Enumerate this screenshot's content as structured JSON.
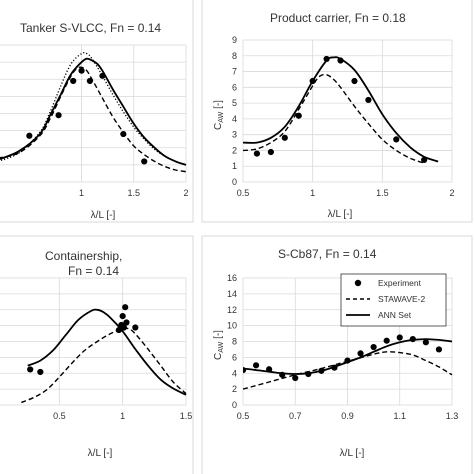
{
  "chart_data": [
    {
      "type": "line",
      "title": "Tanker S-VLCC, Fn = 0.14",
      "xlabel": "λ/L [-]",
      "ylabel": "",
      "xlim": [
        0.2,
        2
      ],
      "ylim": [
        0,
        8
      ],
      "xticks": [
        1,
        1.5,
        2
      ],
      "yticks": [],
      "grid": true,
      "series": [
        {
          "name": "Experiment",
          "style": "points",
          "x": [
            0.5,
            0.78,
            0.92,
            1.0,
            1.08,
            1.2,
            1.4,
            1.6
          ],
          "y": [
            2.7,
            3.9,
            5.9,
            6.5,
            5.9,
            6.2,
            2.8,
            1.2
          ]
        },
        {
          "name": "STAWAVE-2",
          "style": "dashed",
          "x": [
            0.2,
            0.4,
            0.6,
            0.7,
            0.8,
            0.9,
            0.95,
            1.0,
            1.05,
            1.1,
            1.2,
            1.3,
            1.4,
            1.5,
            1.6,
            1.7,
            1.8,
            1.9,
            2.0
          ],
          "y": [
            1.4,
            1.7,
            2.7,
            3.7,
            5.0,
            6.2,
            6.6,
            6.7,
            6.5,
            6.0,
            4.9,
            3.8,
            2.9,
            2.1,
            1.6,
            1.2,
            0.9,
            0.7,
            0.6
          ]
        },
        {
          "name": "ANN Set",
          "style": "solid",
          "x": [
            0.2,
            0.4,
            0.6,
            0.7,
            0.8,
            0.9,
            1.0,
            1.05,
            1.1,
            1.15,
            1.2,
            1.3,
            1.4,
            1.5,
            1.6,
            1.7,
            1.8,
            1.9,
            2.0
          ],
          "y": [
            1.3,
            1.8,
            2.8,
            3.9,
            5.1,
            6.3,
            7.0,
            7.2,
            7.1,
            6.9,
            6.5,
            5.4,
            4.4,
            3.4,
            2.6,
            2.0,
            1.5,
            1.2,
            1.0
          ]
        },
        {
          "name": "",
          "style": "dotted",
          "x": [
            0.2,
            0.4,
            0.6,
            0.7,
            0.8,
            0.9,
            1.0,
            1.05,
            1.1,
            1.2,
            1.3,
            1.4,
            1.5,
            1.6,
            1.7,
            1.8,
            1.9,
            2.0
          ],
          "y": [
            1.2,
            1.7,
            2.9,
            4.1,
            5.6,
            6.9,
            7.5,
            7.5,
            7.2,
            6.2,
            5.1,
            4.1,
            3.2,
            2.5,
            1.9,
            1.5,
            1.2,
            1.0
          ]
        }
      ]
    },
    {
      "type": "line",
      "title": "Product carrier, Fn = 0.18",
      "xlabel": "λ/L [-]",
      "ylabel": "C_AW [-]",
      "xlim": [
        0.5,
        2
      ],
      "ylim": [
        0,
        9
      ],
      "xticks": [
        0.5,
        1,
        1.5,
        2
      ],
      "yticks": [
        0,
        1,
        2,
        3,
        4,
        5,
        6,
        7,
        8,
        9
      ],
      "grid": true,
      "series": [
        {
          "name": "Experiment",
          "style": "points",
          "x": [
            0.6,
            0.7,
            0.8,
            0.9,
            1.0,
            1.1,
            1.2,
            1.3,
            1.4,
            1.6,
            1.8
          ],
          "y": [
            1.8,
            1.9,
            2.8,
            4.2,
            6.4,
            7.8,
            7.7,
            6.4,
            5.2,
            2.7,
            1.4
          ]
        },
        {
          "name": "STAWAVE-2",
          "style": "dashed",
          "x": [
            0.5,
            0.6,
            0.7,
            0.8,
            0.9,
            1.0,
            1.05,
            1.1,
            1.15,
            1.2,
            1.3,
            1.4,
            1.5,
            1.6,
            1.7,
            1.8
          ],
          "y": [
            2.0,
            2.1,
            2.5,
            3.2,
            4.6,
            6.1,
            6.7,
            6.8,
            6.5,
            6.0,
            4.8,
            3.7,
            2.7,
            2.0,
            1.5,
            1.2
          ]
        },
        {
          "name": "ANN Set",
          "style": "solid",
          "x": [
            0.5,
            0.6,
            0.7,
            0.8,
            0.9,
            1.0,
            1.1,
            1.15,
            1.2,
            1.3,
            1.4,
            1.5,
            1.6,
            1.7,
            1.8,
            1.9
          ],
          "y": [
            2.5,
            2.5,
            2.8,
            3.5,
            4.8,
            6.4,
            7.7,
            7.9,
            7.8,
            7.1,
            5.8,
            4.3,
            3.1,
            2.2,
            1.6,
            1.3
          ]
        }
      ]
    },
    {
      "type": "line",
      "title": "Containership,",
      "subtitle": "Fn = 0.14",
      "xlabel": "λ/L [-]",
      "ylabel": "",
      "xlim": [
        0,
        1.5
      ],
      "ylim": [
        0,
        10
      ],
      "xticks": [
        0.5,
        1,
        1.5
      ],
      "yticks": [],
      "grid": true,
      "series": [
        {
          "name": "Experiment",
          "style": "points",
          "x": [
            0.27,
            0.35,
            0.97,
            0.99,
            1.0,
            1.01,
            1.02,
            1.03,
            1.1
          ],
          "y": [
            2.8,
            2.6,
            5.9,
            6.3,
            7.0,
            6.1,
            7.7,
            6.5,
            6.1
          ]
        },
        {
          "name": "STAWAVE-2",
          "style": "dashed",
          "x": [
            0.2,
            0.3,
            0.4,
            0.5,
            0.6,
            0.7,
            0.8,
            0.9,
            1.0,
            1.05,
            1.1,
            1.2,
            1.3,
            1.4,
            1.5
          ],
          "y": [
            0.2,
            0.6,
            1.2,
            2.2,
            3.3,
            4.3,
            5.0,
            5.6,
            6.0,
            6.0,
            5.6,
            4.4,
            3.1,
            1.8,
            0.9
          ]
        },
        {
          "name": "ANN Set",
          "style": "solid",
          "x": [
            0.25,
            0.35,
            0.45,
            0.55,
            0.65,
            0.75,
            0.8,
            0.85,
            0.9,
            1.0,
            1.1,
            1.2,
            1.3,
            1.4,
            1.5
          ],
          "y": [
            3.1,
            3.5,
            4.3,
            5.5,
            6.7,
            7.4,
            7.5,
            7.3,
            6.9,
            5.8,
            4.4,
            3.1,
            2.0,
            1.3,
            0.8
          ]
        }
      ]
    },
    {
      "type": "line",
      "title": "S-Cb87, Fn = 0.14",
      "xlabel": "λ/L [-]",
      "ylabel": "C_AW [-]",
      "xlim": [
        0.5,
        1.3
      ],
      "ylim": [
        0,
        16
      ],
      "xticks": [
        0.5,
        0.7,
        0.9,
        1.1,
        1.3
      ],
      "yticks": [
        0,
        2,
        4,
        6,
        8,
        10,
        12,
        14,
        16
      ],
      "grid": true,
      "legend": "top-right",
      "series": [
        {
          "name": "Experiment",
          "style": "points",
          "x": [
            0.5,
            0.55,
            0.6,
            0.65,
            0.7,
            0.75,
            0.8,
            0.85,
            0.9,
            0.95,
            1.0,
            1.05,
            1.1,
            1.15,
            1.2,
            1.25
          ],
          "y": [
            4.4,
            5.0,
            4.5,
            3.8,
            3.4,
            3.9,
            4.3,
            4.7,
            5.6,
            6.5,
            7.3,
            8.1,
            8.5,
            8.3,
            7.9,
            7.0
          ]
        },
        {
          "name": "STAWAVE-2",
          "style": "dashed",
          "x": [
            0.5,
            0.6,
            0.7,
            0.8,
            0.9,
            1.0,
            1.05,
            1.1,
            1.15,
            1.2,
            1.25,
            1.3
          ],
          "y": [
            2.0,
            2.9,
            3.8,
            4.6,
            5.5,
            6.4,
            6.7,
            6.6,
            6.3,
            5.6,
            4.8,
            3.8
          ]
        },
        {
          "name": "ANN Set",
          "style": "solid",
          "x": [
            0.5,
            0.55,
            0.6,
            0.65,
            0.7,
            0.75,
            0.8,
            0.85,
            0.9,
            0.95,
            1.0,
            1.05,
            1.1,
            1.15,
            1.2,
            1.25,
            1.3
          ],
          "y": [
            4.6,
            4.4,
            4.2,
            4.0,
            3.9,
            4.0,
            4.3,
            4.8,
            5.4,
            6.0,
            6.7,
            7.4,
            7.9,
            8.2,
            8.3,
            8.2,
            8.0
          ]
        }
      ]
    }
  ]
}
